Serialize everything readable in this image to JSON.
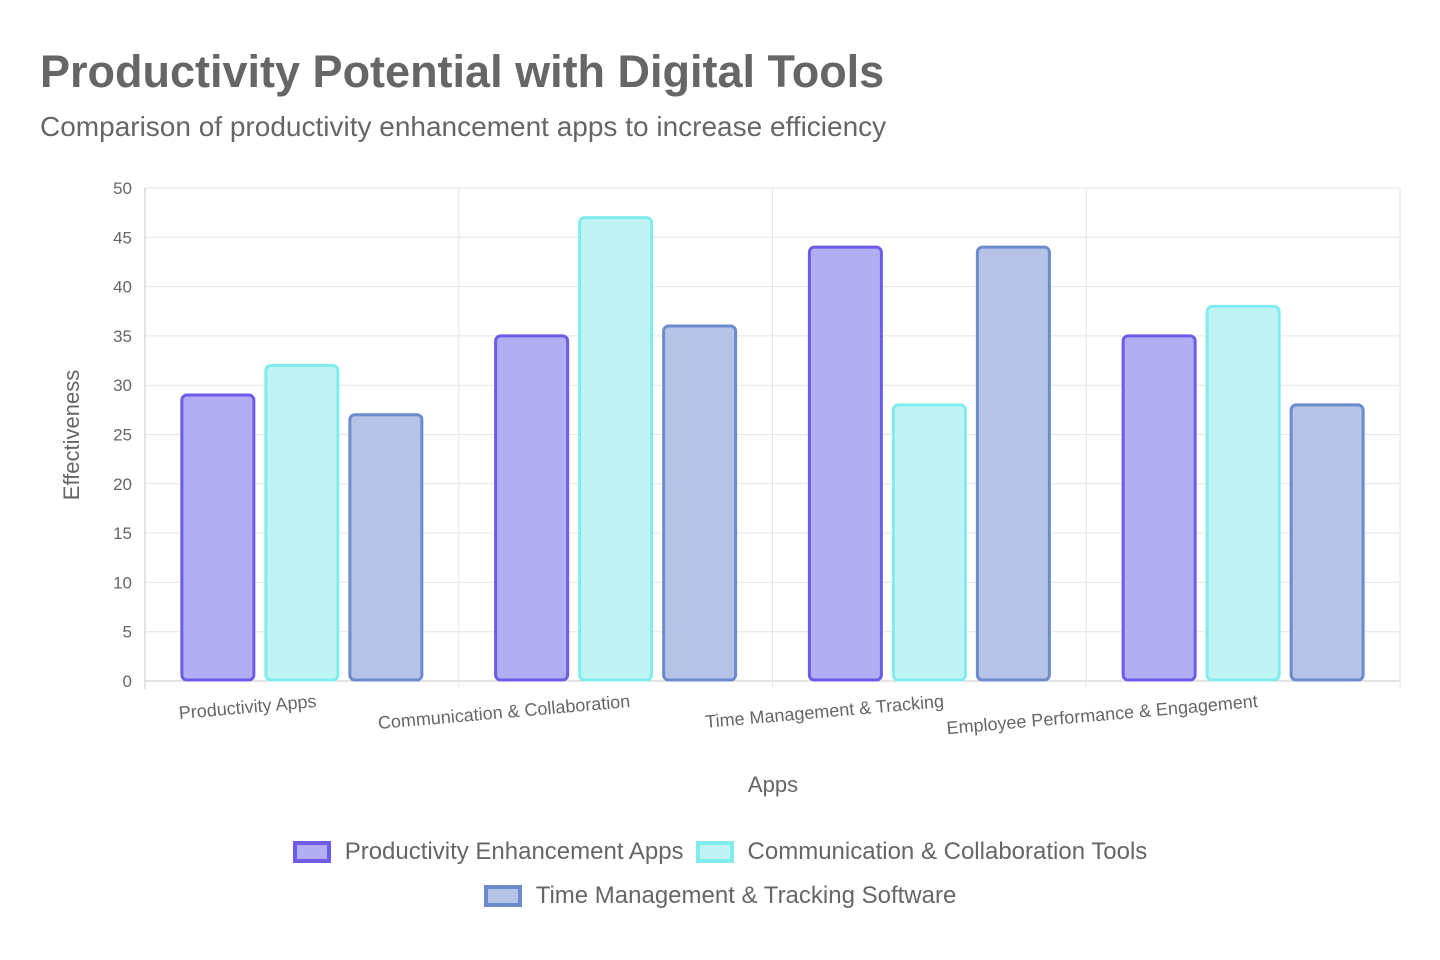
{
  "chart_data": {
    "type": "bar",
    "title": "Productivity Potential with Digital Tools",
    "subtitle": "Comparison of productivity enhancement apps to increase efficiency",
    "xlabel": "Apps",
    "ylabel": "Effectiveness",
    "ylim": [
      0,
      50
    ],
    "y_ticks": [
      0,
      5,
      10,
      15,
      20,
      25,
      30,
      35,
      40,
      45,
      50
    ],
    "grid": true,
    "legend_position": "bottom",
    "categories": [
      "Productivity Apps",
      "Communication & Collaboration",
      "Time Management & Tracking",
      "Employee Performance & Engagement"
    ],
    "series": [
      {
        "name": "Productivity Enhancement Apps",
        "values": [
          29,
          35,
          44,
          35
        ],
        "fill": "#b3aef2",
        "stroke": "#6c5ce7"
      },
      {
        "name": "Communication & Collaboration Tools",
        "values": [
          32,
          47,
          28,
          38
        ],
        "fill": "#c0f4f4",
        "stroke": "#81ecec"
      },
      {
        "name": "Time Management & Tracking Software",
        "values": [
          27,
          36,
          44,
          28
        ],
        "fill": "#b4c3e6",
        "stroke": "#6c8bcc"
      }
    ]
  }
}
